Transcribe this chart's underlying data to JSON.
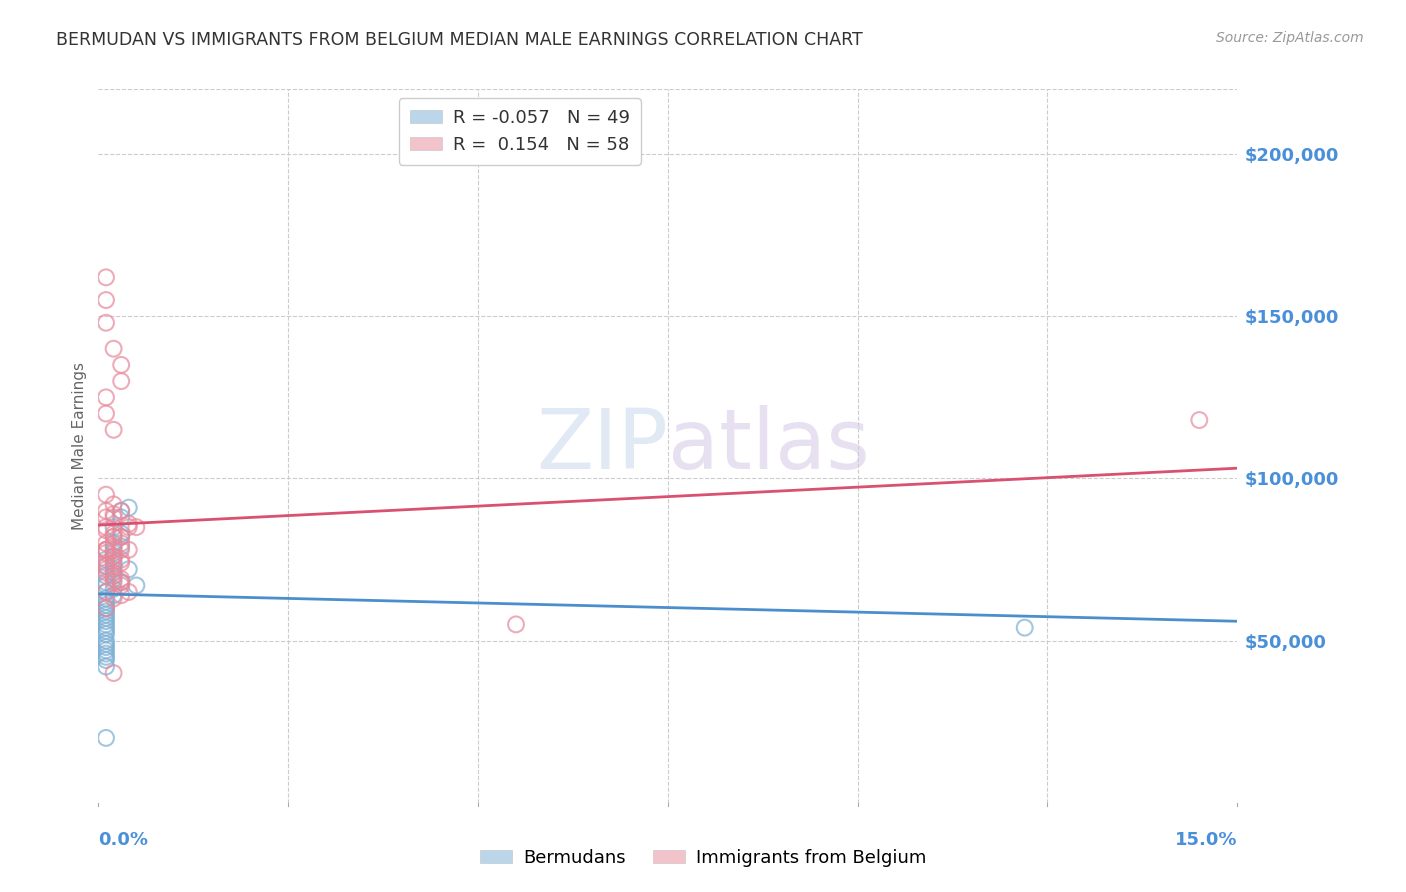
{
  "title": "BERMUDAN VS IMMIGRANTS FROM BELGIUM MEDIAN MALE EARNINGS CORRELATION CHART",
  "source": "Source: ZipAtlas.com",
  "ylabel": "Median Male Earnings",
  "x_min": 0.0,
  "x_max": 0.15,
  "y_min": 0,
  "y_max": 220000,
  "ytick_values": [
    50000,
    100000,
    150000,
    200000
  ],
  "series1_name": "Bermudans",
  "series1_color": "#7bafd4",
  "series1_edge": "#5590bb",
  "series1_R": -0.057,
  "series1_N": 49,
  "series1_x": [
    0.001,
    0.002,
    0.001,
    0.002,
    0.003,
    0.001,
    0.002,
    0.001,
    0.001,
    0.002,
    0.001,
    0.001,
    0.002,
    0.001,
    0.001,
    0.003,
    0.002,
    0.001,
    0.001,
    0.002,
    0.001,
    0.001,
    0.003,
    0.002,
    0.001,
    0.002,
    0.003,
    0.001,
    0.001,
    0.001,
    0.001,
    0.001,
    0.002,
    0.001,
    0.001,
    0.003,
    0.001,
    0.002,
    0.001,
    0.001,
    0.004,
    0.003,
    0.004,
    0.001,
    0.001,
    0.005,
    0.001,
    0.122,
    0.001
  ],
  "series1_y": [
    75000,
    80000,
    68000,
    85000,
    90000,
    73000,
    78000,
    65000,
    70000,
    72000,
    60000,
    58000,
    76000,
    63000,
    62000,
    82000,
    69000,
    55000,
    67000,
    74000,
    56000,
    54000,
    88000,
    77000,
    57000,
    71000,
    83000,
    52000,
    49000,
    50000,
    47000,
    45000,
    64000,
    61000,
    48000,
    79000,
    59000,
    66000,
    53000,
    44000,
    72000,
    68000,
    91000,
    46000,
    60000,
    67000,
    20000,
    54000,
    42000
  ],
  "series2_name": "Immigrants from Belgium",
  "series2_color": "#e8889a",
  "series2_edge": "#cc607a",
  "series2_R": 0.154,
  "series2_N": 58,
  "series2_x": [
    0.001,
    0.001,
    0.002,
    0.001,
    0.002,
    0.003,
    0.001,
    0.002,
    0.001,
    0.002,
    0.003,
    0.001,
    0.002,
    0.003,
    0.001,
    0.002,
    0.001,
    0.002,
    0.001,
    0.003,
    0.002,
    0.001,
    0.003,
    0.002,
    0.004,
    0.001,
    0.002,
    0.003,
    0.001,
    0.002,
    0.003,
    0.001,
    0.002,
    0.004,
    0.003,
    0.002,
    0.001,
    0.003,
    0.002,
    0.001,
    0.004,
    0.003,
    0.001,
    0.002,
    0.003,
    0.001,
    0.002,
    0.001,
    0.003,
    0.002,
    0.004,
    0.001,
    0.002,
    0.055,
    0.005,
    0.001,
    0.145,
    0.001
  ],
  "series2_y": [
    78000,
    155000,
    82000,
    148000,
    75000,
    90000,
    162000,
    70000,
    85000,
    88000,
    130000,
    95000,
    115000,
    78000,
    125000,
    82000,
    74000,
    68000,
    65000,
    80000,
    76000,
    72000,
    135000,
    83000,
    85000,
    77000,
    73000,
    69000,
    88000,
    140000,
    64000,
    71000,
    79000,
    86000,
    67000,
    63000,
    90000,
    74000,
    92000,
    84000,
    78000,
    82000,
    120000,
    76000,
    68000,
    73000,
    89000,
    80000,
    75000,
    70000,
    65000,
    60000,
    40000,
    55000,
    85000,
    78000,
    118000,
    78000
  ],
  "line_color_blue": "#4a8fcc",
  "line_color_pink": "#d95070",
  "bg_color": "#ffffff",
  "grid_color": "#cccccc",
  "tick_label_color": "#4a90d9",
  "title_color": "#333333",
  "ylabel_color": "#666666"
}
